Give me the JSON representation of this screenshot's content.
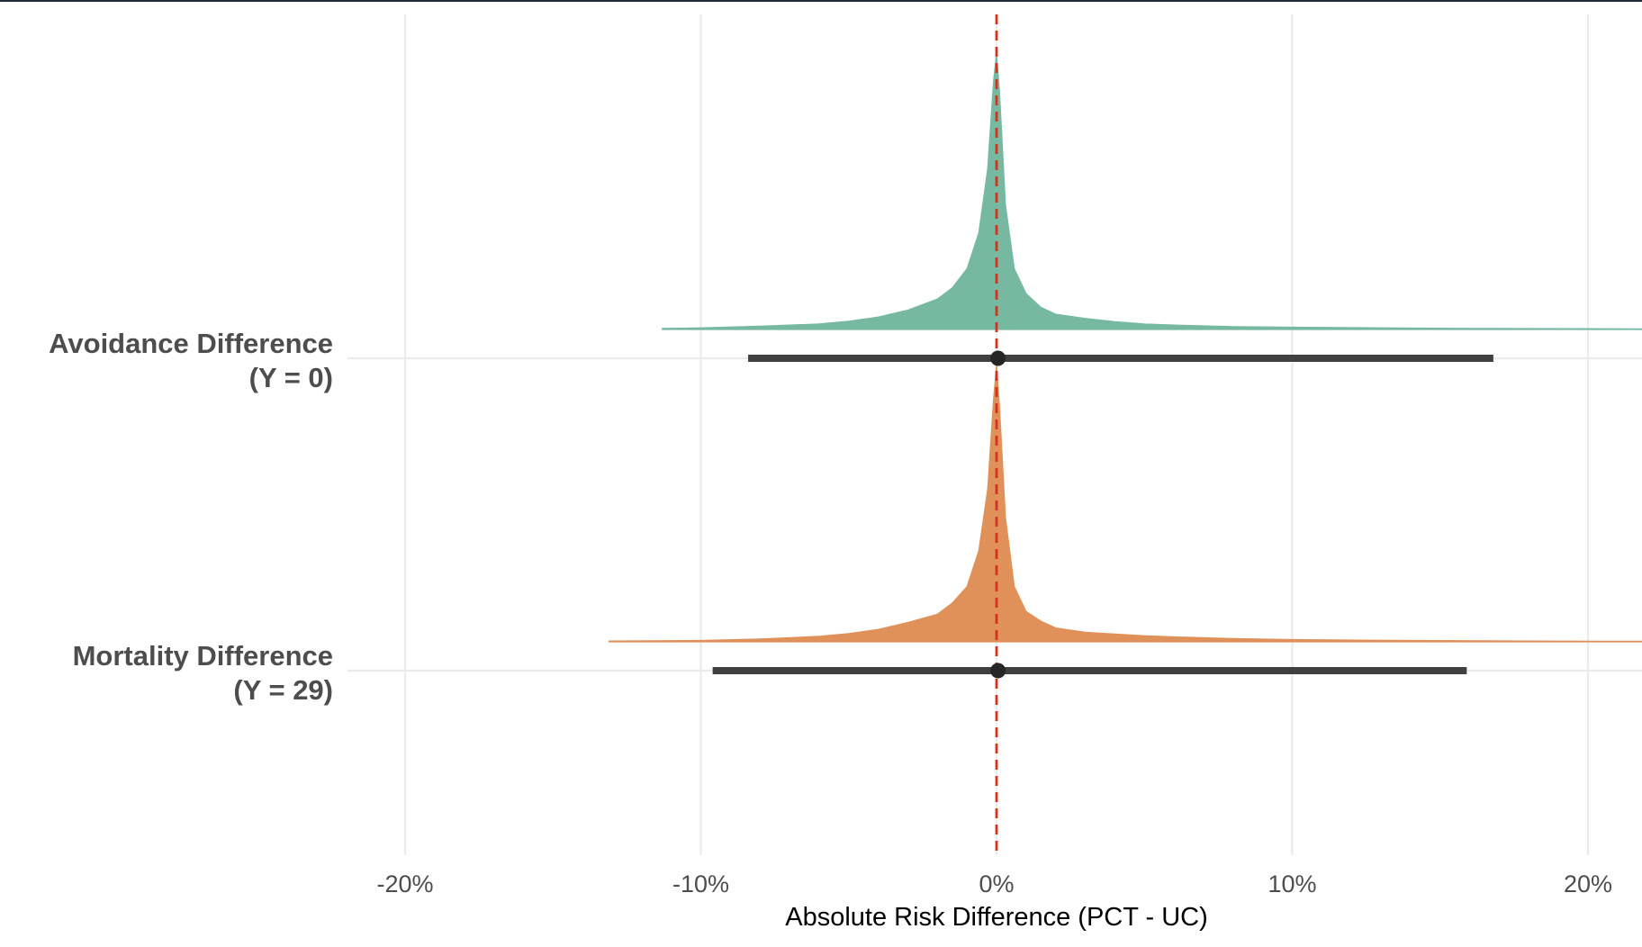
{
  "chart_data": {
    "type": "halfeye",
    "title": "",
    "xlabel": "Absolute Risk Difference (PCT - UC)",
    "ylabel": "",
    "xlim": [
      -22,
      22
    ],
    "x_ticks": [
      -20,
      -10,
      0,
      10,
      20
    ],
    "x_tick_labels": [
      "-20%",
      "-10%",
      "0%",
      "10%",
      "20%"
    ],
    "reference_line": {
      "x": 0,
      "style": "dashed",
      "color": "#d7301f"
    },
    "grid": true,
    "series": [
      {
        "name": "Avoidance Difference",
        "label_line1": "Avoidance Difference",
        "label_line2": "(Y = 0)",
        "color": "#77b9a0",
        "point_estimate": 0.05,
        "interval": [
          -8.4,
          16.8
        ],
        "density_range": [
          -11.3,
          22
        ],
        "density_points": [
          [
            -11.3,
            0.004
          ],
          [
            -10,
            0.006
          ],
          [
            -8,
            0.012
          ],
          [
            -6,
            0.02
          ],
          [
            -5,
            0.03
          ],
          [
            -4,
            0.045
          ],
          [
            -3,
            0.07
          ],
          [
            -2,
            0.11
          ],
          [
            -1.5,
            0.15
          ],
          [
            -1,
            0.22
          ],
          [
            -0.6,
            0.35
          ],
          [
            -0.3,
            0.58
          ],
          [
            -0.1,
            0.9
          ],
          [
            0,
            1.0
          ],
          [
            0.1,
            0.86
          ],
          [
            0.3,
            0.45
          ],
          [
            0.6,
            0.22
          ],
          [
            1,
            0.13
          ],
          [
            1.5,
            0.08
          ],
          [
            2,
            0.055
          ],
          [
            3,
            0.04
          ],
          [
            4,
            0.028
          ],
          [
            5,
            0.02
          ],
          [
            6,
            0.016
          ],
          [
            8,
            0.01
          ],
          [
            10,
            0.008
          ],
          [
            13,
            0.006
          ],
          [
            16,
            0.004
          ],
          [
            20,
            0.003
          ],
          [
            22,
            0.002
          ]
        ]
      },
      {
        "name": "Mortality Difference",
        "label_line1": "Mortality Difference",
        "label_line2": "(Y = 29)",
        "color": "#df9159",
        "point_estimate": 0.05,
        "interval": [
          -9.6,
          15.9
        ],
        "density_range": [
          -13.1,
          22
        ],
        "density_points": [
          [
            -13.1,
            0.003
          ],
          [
            -10,
            0.005
          ],
          [
            -8,
            0.01
          ],
          [
            -6,
            0.02
          ],
          [
            -5,
            0.03
          ],
          [
            -4,
            0.045
          ],
          [
            -3,
            0.07
          ],
          [
            -2.5,
            0.085
          ],
          [
            -2,
            0.1
          ],
          [
            -1.5,
            0.14
          ],
          [
            -1,
            0.2
          ],
          [
            -0.6,
            0.33
          ],
          [
            -0.3,
            0.55
          ],
          [
            -0.1,
            0.88
          ],
          [
            0,
            1.0
          ],
          [
            0.1,
            0.85
          ],
          [
            0.3,
            0.45
          ],
          [
            0.6,
            0.2
          ],
          [
            1,
            0.11
          ],
          [
            1.5,
            0.075
          ],
          [
            2,
            0.05
          ],
          [
            3,
            0.035
          ],
          [
            4,
            0.028
          ],
          [
            5,
            0.022
          ],
          [
            6,
            0.018
          ],
          [
            8,
            0.012
          ],
          [
            10,
            0.008
          ],
          [
            14,
            0.005
          ],
          [
            18,
            0.003
          ],
          [
            22,
            0.002
          ]
        ]
      }
    ]
  }
}
